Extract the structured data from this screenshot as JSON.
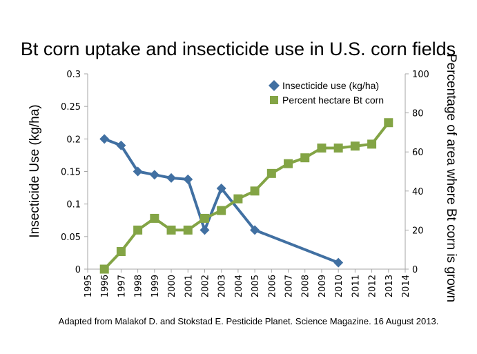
{
  "chart_data": {
    "type": "line",
    "title": "Bt corn uptake and insecticide use in U.S. corn fields",
    "xlabel": "",
    "ylabel": "Insecticide Use (kg/ha)",
    "y2label": "Percentage of area where Bt corn is grown",
    "xlim": [
      1995,
      2014
    ],
    "ylim": [
      0,
      0.3
    ],
    "y2lim": [
      0,
      100
    ],
    "x_ticks": [
      "1995",
      "1996",
      "1997",
      "1998",
      "1999",
      "2000",
      "2001",
      "2002",
      "2003",
      "2004",
      "2005",
      "2006",
      "2007",
      "2008",
      "2009",
      "2010",
      "2011",
      "2012",
      "2013",
      "2014"
    ],
    "y_ticks": [
      "0",
      "0.05",
      "0.1",
      "0.15",
      "0.2",
      "0.25",
      "0.3"
    ],
    "y2_ticks": [
      "0",
      "20",
      "40",
      "60",
      "80",
      "100"
    ],
    "grid": false,
    "legend_position": "top-right",
    "series": [
      {
        "name": "Insecticide use (kg/ha)",
        "axis": "left",
        "color": "#4170a2",
        "marker": "diamond",
        "x": [
          1996,
          1997,
          1998,
          1999,
          2000,
          2001,
          2002,
          2003,
          2005,
          2010
        ],
        "values": [
          0.2,
          0.19,
          0.15,
          0.145,
          0.14,
          0.138,
          0.06,
          0.124,
          0.06,
          0.01
        ]
      },
      {
        "name": "Percent hectare Bt corn",
        "axis": "right",
        "color": "#83a445",
        "marker": "square",
        "x": [
          1996,
          1997,
          1998,
          1999,
          2000,
          2001,
          2002,
          2003,
          2004,
          2005,
          2006,
          2007,
          2008,
          2009,
          2010,
          2011,
          2012,
          2013
        ],
        "values": [
          0,
          9,
          20,
          26,
          20,
          20,
          26,
          30,
          36,
          40,
          49,
          54,
          57,
          62,
          62,
          63,
          64,
          75
        ]
      }
    ],
    "annotations": [
      "Adapted from Malakof D. and Stokstad E. Pesticide Planet. Science Magazine. 16 August 2013."
    ]
  }
}
